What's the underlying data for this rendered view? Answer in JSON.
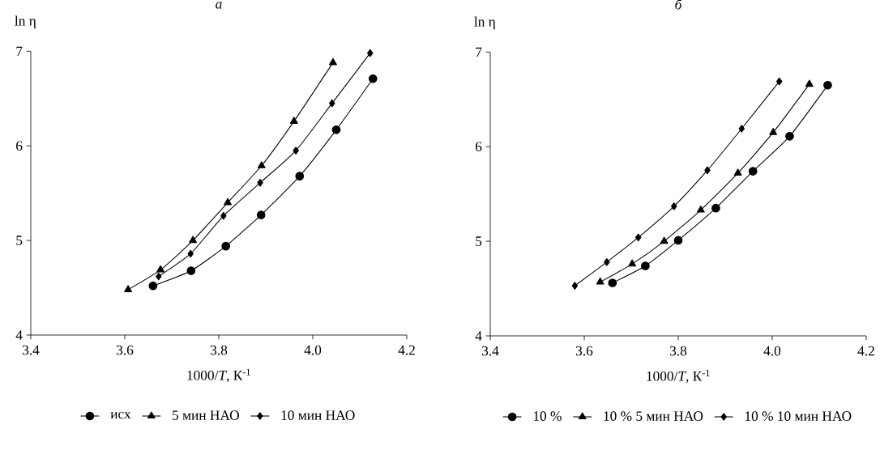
{
  "chart_data": [
    {
      "type": "line",
      "title": "а",
      "xlabel": "1000/*T*, К$^{-1}$",
      "ylabel": "ln η",
      "xlim": [
        3.4,
        4.2
      ],
      "xticks": [
        {
          "value": 3.4,
          "label": "3.4"
        },
        {
          "value": 3.6,
          "label": "3.6"
        },
        {
          "value": 3.8,
          "label": "3.8"
        },
        {
          "value": 4.0,
          "label": "4.0"
        },
        {
          "value": 4.2,
          "label": "4.2"
        }
      ],
      "ylim": [
        4,
        7
      ],
      "yticks": [
        4,
        5,
        6,
        7
      ],
      "legend": "bottom",
      "grid": false,
      "line_style": "solid",
      "series": [
        {
          "name": "исх",
          "color": "#000000",
          "marker": "circle",
          "x": [
            3.66,
            3.741,
            3.815,
            3.89,
            3.972,
            4.05,
            4.128
          ],
          "values": [
            4.52,
            4.68,
            4.94,
            5.27,
            5.68,
            6.17,
            6.71
          ]
        },
        {
          "name": "5 мин НАО",
          "color": "#000000",
          "marker": "triangle",
          "x": [
            3.607,
            3.676,
            3.745,
            3.819,
            3.891,
            3.96,
            4.043
          ],
          "values": [
            4.48,
            4.69,
            5.0,
            5.4,
            5.79,
            6.26,
            6.88
          ]
        },
        {
          "name": "10 мин НАО",
          "color": "#000000",
          "marker": "diamond",
          "x": [
            3.672,
            3.74,
            3.81,
            3.888,
            3.964,
            4.041,
            4.122
          ],
          "values": [
            4.62,
            4.86,
            5.26,
            5.61,
            5.95,
            6.45,
            6.98
          ]
        }
      ]
    },
    {
      "type": "line",
      "title": "б",
      "xlabel": "1000/*T*, К$^{-1}$",
      "ylabel": "ln η",
      "xlim": [
        3.4,
        4.2
      ],
      "xticks": [
        {
          "value": 3.4,
          "label": "3.4"
        },
        {
          "value": 3.6,
          "label": "3.6"
        },
        {
          "value": 3.8,
          "label": "3.8"
        },
        {
          "value": 4.0,
          "label": "4.0"
        },
        {
          "value": 4.2,
          "label": "4.2"
        }
      ],
      "ylim": [
        4,
        7
      ],
      "yticks": [
        4,
        5,
        6,
        7
      ],
      "legend": "bottom",
      "grid": false,
      "line_style": "solid",
      "series": [
        {
          "name": "10 %",
          "color": "#000000",
          "marker": "circle",
          "x": [
            3.66,
            3.73,
            3.8,
            3.88,
            3.959,
            4.037,
            4.118
          ],
          "values": [
            4.56,
            4.74,
            5.01,
            5.35,
            5.74,
            6.11,
            6.65
          ]
        },
        {
          "name": "10 % 5 мин НАО",
          "color": "#000000",
          "marker": "triangle",
          "x": [
            3.634,
            3.702,
            3.77,
            3.848,
            3.927,
            4.002,
            4.079
          ],
          "values": [
            4.57,
            4.76,
            5.0,
            5.33,
            5.72,
            6.15,
            6.66
          ]
        },
        {
          "name": "10 % 10 мин НАО",
          "color": "#000000",
          "marker": "diamond",
          "x": [
            3.58,
            3.648,
            3.715,
            3.791,
            3.862,
            3.935,
            4.015
          ],
          "values": [
            4.53,
            4.78,
            5.04,
            5.37,
            5.75,
            6.19,
            6.69
          ]
        }
      ]
    }
  ]
}
